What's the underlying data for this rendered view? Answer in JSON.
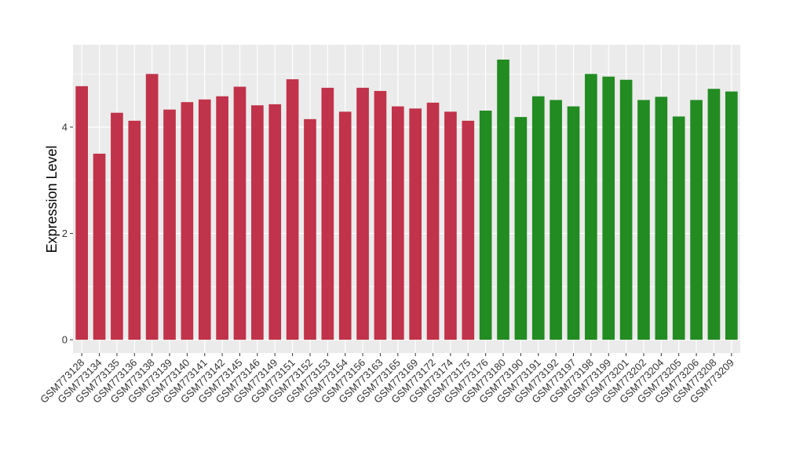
{
  "chart_data": {
    "type": "bar",
    "title": "",
    "xlabel": "",
    "ylabel": "Expression Level",
    "ylim": [
      -0.25,
      5.55
    ],
    "yticks": [
      0,
      2,
      4
    ],
    "grid": true,
    "legend": "none",
    "panel_background": "#ebebeb",
    "grid_color": "#ffffff",
    "categories": [
      "GSM773128",
      "GSM773134",
      "GSM773135",
      "GSM773136",
      "GSM773138",
      "GSM773139",
      "GSM773140",
      "GSM773141",
      "GSM773142",
      "GSM773145",
      "GSM773146",
      "GSM773149",
      "GSM773151",
      "GSM773152",
      "GSM773153",
      "GSM773154",
      "GSM773156",
      "GSM773163",
      "GSM773165",
      "GSM773169",
      "GSM773172",
      "GSM773174",
      "GSM773175",
      "GSM773176",
      "GSM773180",
      "GSM773190",
      "GSM773191",
      "GSM773192",
      "GSM773197",
      "GSM773198",
      "GSM773199",
      "GSM773201",
      "GSM773202",
      "GSM773204",
      "GSM773205",
      "GSM773206",
      "GSM773208",
      "GSM773209"
    ],
    "values": [
      4.77,
      3.5,
      4.27,
      4.12,
      5.0,
      4.33,
      4.47,
      4.52,
      4.58,
      4.76,
      4.41,
      4.43,
      4.9,
      4.15,
      4.74,
      4.29,
      4.74,
      4.68,
      4.39,
      4.35,
      4.46,
      4.29,
      4.12,
      4.31,
      5.27,
      4.19,
      4.58,
      4.51,
      4.39,
      5.0,
      4.95,
      4.89,
      4.51,
      4.57,
      4.2,
      4.51,
      4.72,
      4.67
    ],
    "groups": [
      "red",
      "red",
      "red",
      "red",
      "red",
      "red",
      "red",
      "red",
      "red",
      "red",
      "red",
      "red",
      "red",
      "red",
      "red",
      "red",
      "red",
      "red",
      "red",
      "red",
      "red",
      "red",
      "red",
      "green",
      "green",
      "green",
      "green",
      "green",
      "green",
      "green",
      "green",
      "green",
      "green",
      "green",
      "green",
      "green",
      "green",
      "green"
    ],
    "colors": {
      "red": "#c0334a",
      "green": "#228b22"
    }
  }
}
